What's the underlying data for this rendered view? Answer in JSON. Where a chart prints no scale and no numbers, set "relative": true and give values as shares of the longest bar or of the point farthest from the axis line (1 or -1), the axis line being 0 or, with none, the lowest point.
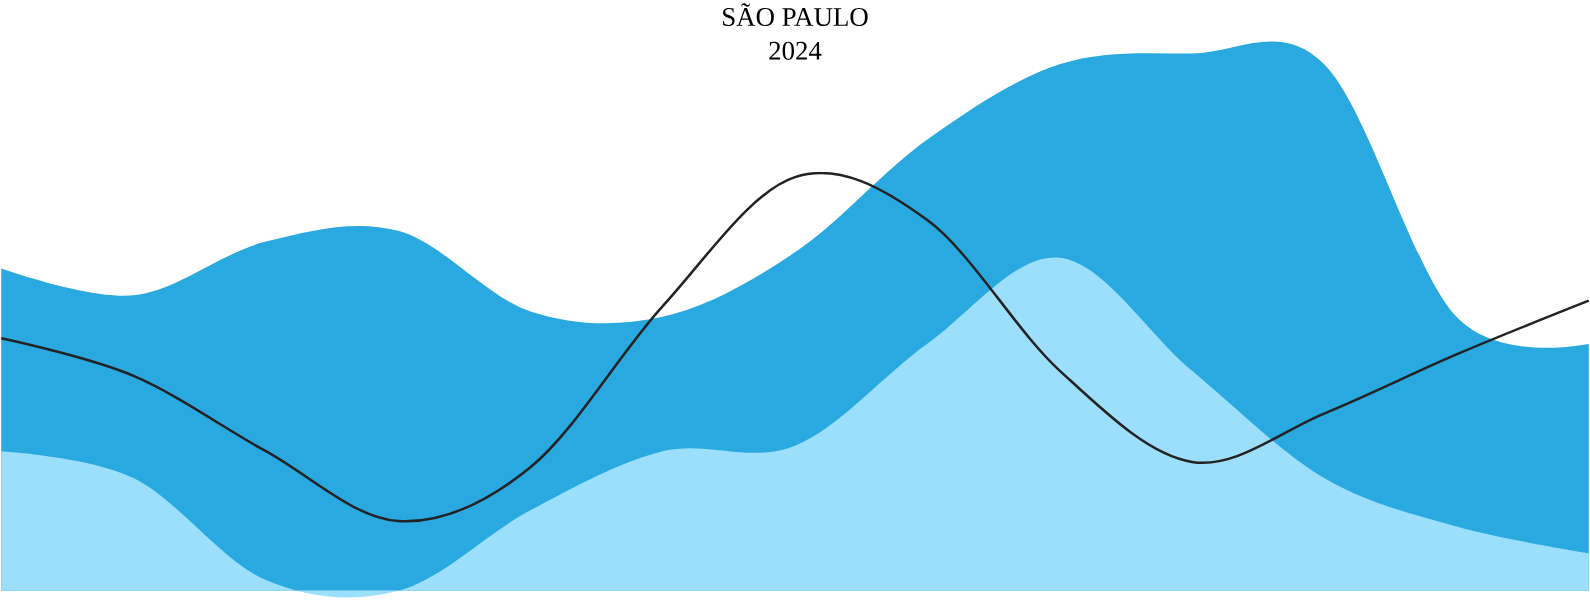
{
  "chart_data": {
    "type": "area",
    "title": "SÃO PAULO",
    "subtitle": "2024",
    "relative": true,
    "categories": [
      null,
      null,
      null,
      null,
      null,
      null,
      null,
      null,
      null,
      null,
      null,
      null,
      null
    ],
    "series": [
      {
        "color": "#29a9e0",
        "values": [
          0.6,
          0.55,
          0.65,
          0.67,
          0.52,
          0.51,
          0.63,
          0.84,
          0.98,
          1.0,
          0.98,
          0.51,
          0.46
        ]
      },
      {
        "color": "#9bdffc",
        "values": [
          0.26,
          0.21,
          0.02,
          0,
          0.15,
          0.26,
          0.27,
          0.46,
          0.62,
          0.41,
          0.21,
          0.12,
          0.07
        ]
      },
      {
        "type": "line",
        "color": "#222222",
        "values": [
          0.47,
          0.4,
          0.26,
          0.13,
          0.23,
          0.53,
          0.77,
          0.69,
          0.41,
          0.24,
          0.33,
          0.44,
          0.54
        ]
      }
    ]
  }
}
